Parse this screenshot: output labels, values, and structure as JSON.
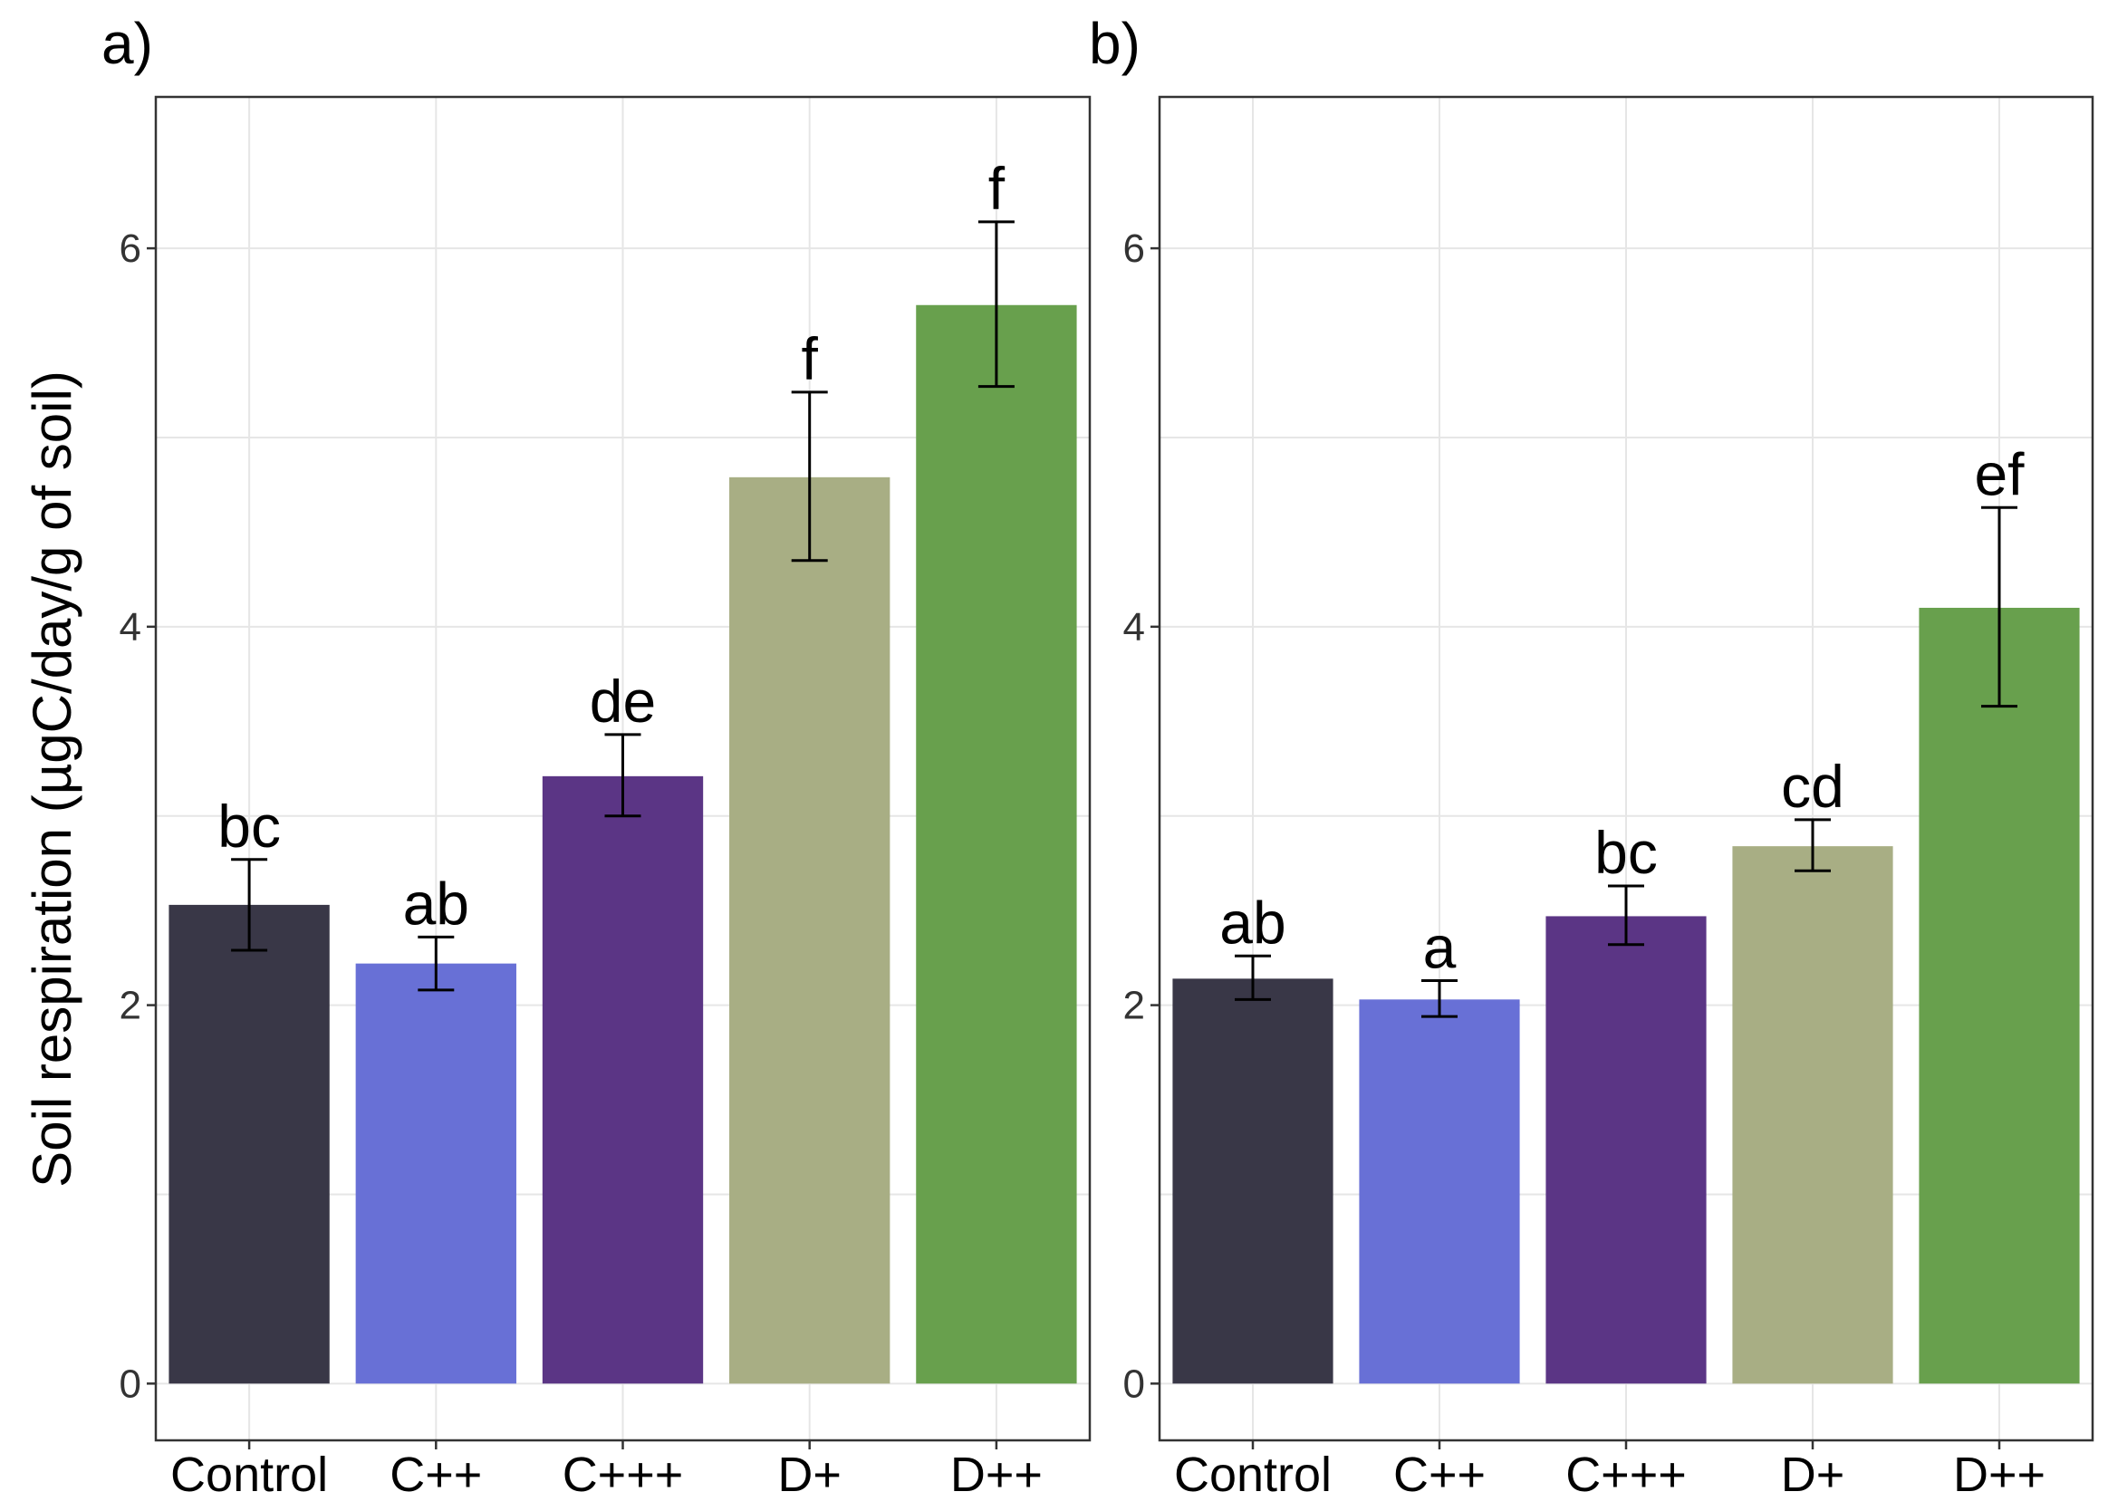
{
  "chart_data": [
    {
      "type": "bar",
      "panel_label": "a)",
      "ylabel": "Soil respiration (µgC/day/g of soil)",
      "xlabel": "",
      "ylim": [
        -0.3,
        6.8
      ],
      "yticks": [
        0,
        2,
        4,
        6
      ],
      "ytick_labels": [
        "0",
        "2",
        "4",
        "6"
      ],
      "categories": [
        "Control",
        "C++",
        "C+++",
        "D+",
        "D++"
      ],
      "values": [
        2.53,
        2.22,
        3.21,
        4.79,
        5.7
      ],
      "error_low": [
        2.29,
        2.08,
        3.0,
        4.35,
        5.27
      ],
      "error_high": [
        2.77,
        2.36,
        3.43,
        5.24,
        6.14
      ],
      "significance": [
        "bc",
        "ab",
        "de",
        "f",
        "f"
      ],
      "colors": [
        "#393747",
        "#6870d6",
        "#5b3585",
        "#a8ae84",
        "#68a04d"
      ],
      "grid": true
    },
    {
      "type": "bar",
      "panel_label": "b)",
      "ylabel": "",
      "xlabel": "",
      "ylim": [
        -0.3,
        6.8
      ],
      "yticks": [
        0,
        2,
        4,
        6
      ],
      "ytick_labels": [
        "0",
        "2",
        "4",
        "6"
      ],
      "categories": [
        "Control",
        "C++",
        "C+++",
        "D+",
        "D++"
      ],
      "values": [
        2.14,
        2.03,
        2.47,
        2.84,
        4.1
      ],
      "error_low": [
        2.03,
        1.94,
        2.32,
        2.71,
        3.58
      ],
      "error_high": [
        2.26,
        2.13,
        2.63,
        2.98,
        4.63
      ],
      "significance": [
        "ab",
        "a",
        "bc",
        "cd",
        "ef"
      ],
      "colors": [
        "#393747",
        "#6870d6",
        "#5b3585",
        "#a8ae84",
        "#68a04d"
      ],
      "grid": true
    }
  ]
}
